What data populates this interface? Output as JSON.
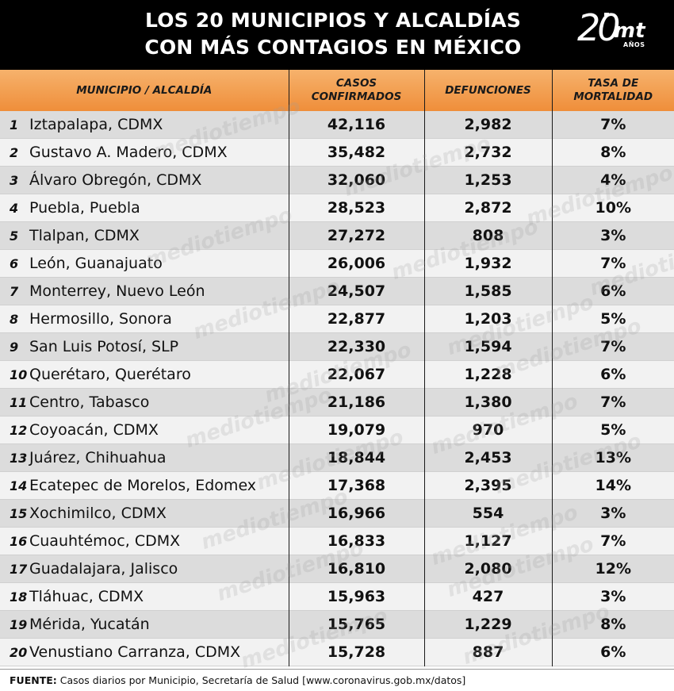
{
  "header": {
    "title_line1": "LOS 20 MUNICIPIOS Y ALCALDÍAS",
    "title_line2": "CON MÁS CONTAGIOS EN MÉXICO",
    "logo_number": "20",
    "logo_mt": "mt",
    "logo_anos": "AÑOS"
  },
  "columns": {
    "municipio": "MUNICIPIO / ALCALDÍA",
    "casos_line1": "CASOS",
    "casos_line2": "CONFIRMADOS",
    "defunciones": "DEFUNCIONES",
    "tasa_line1": "TASA DE",
    "tasa_line2": "MORTALIDAD"
  },
  "rows": [
    {
      "rank": "1",
      "name": "Iztapalapa, CDMX",
      "casos": "42,116",
      "defunciones": "2,982",
      "tasa": "7%"
    },
    {
      "rank": "2",
      "name": "Gustavo A. Madero, CDMX",
      "casos": "35,482",
      "defunciones": "2,732",
      "tasa": "8%"
    },
    {
      "rank": "3",
      "name": "Álvaro Obregón, CDMX",
      "casos": "32,060",
      "defunciones": "1,253",
      "tasa": "4%"
    },
    {
      "rank": "4",
      "name": "Puebla, Puebla",
      "casos": "28,523",
      "defunciones": "2,872",
      "tasa": "10%"
    },
    {
      "rank": "5",
      "name": "Tlalpan, CDMX",
      "casos": "27,272",
      "defunciones": "808",
      "tasa": "3%"
    },
    {
      "rank": "6",
      "name": "León, Guanajuato",
      "casos": "26,006",
      "defunciones": "1,932",
      "tasa": "7%"
    },
    {
      "rank": "7",
      "name": "Monterrey, Nuevo León",
      "casos": "24,507",
      "defunciones": "1,585",
      "tasa": "6%"
    },
    {
      "rank": "8",
      "name": "Hermosillo, Sonora",
      "casos": "22,877",
      "defunciones": "1,203",
      "tasa": "5%"
    },
    {
      "rank": "9",
      "name": "San Luis Potosí, SLP",
      "casos": "22,330",
      "defunciones": "1,594",
      "tasa": "7%"
    },
    {
      "rank": "10",
      "name": "Querétaro, Querétaro",
      "casos": "22,067",
      "defunciones": "1,228",
      "tasa": "6%"
    },
    {
      "rank": "11",
      "name": "Centro, Tabasco",
      "casos": "21,186",
      "defunciones": "1,380",
      "tasa": "7%"
    },
    {
      "rank": "12",
      "name": "Coyoacán, CDMX",
      "casos": "19,079",
      "defunciones": "970",
      "tasa": "5%"
    },
    {
      "rank": "13",
      "name": "Juárez, Chihuahua",
      "casos": "18,844",
      "defunciones": "2,453",
      "tasa": "13%"
    },
    {
      "rank": "14",
      "name": "Ecatepec de Morelos, Edomex",
      "casos": "17,368",
      "defunciones": "2,395",
      "tasa": "14%"
    },
    {
      "rank": "15",
      "name": "Xochimilco, CDMX",
      "casos": "16,966",
      "defunciones": "554",
      "tasa": "3%"
    },
    {
      "rank": "16",
      "name": "Cuauhtémoc, CDMX",
      "casos": "16,833",
      "defunciones": "1,127",
      "tasa": "7%"
    },
    {
      "rank": "17",
      "name": "Guadalajara, Jalisco",
      "casos": "16,810",
      "defunciones": "2,080",
      "tasa": "12%"
    },
    {
      "rank": "18",
      "name": "Tláhuac, CDMX",
      "casos": "15,963",
      "defunciones": "427",
      "tasa": "3%"
    },
    {
      "rank": "19",
      "name": "Mérida, Yucatán",
      "casos": "15,765",
      "defunciones": "1,229",
      "tasa": "8%"
    },
    {
      "rank": "20",
      "name": "Venustiano Carranza, CDMX",
      "casos": "15,728",
      "defunciones": "887",
      "tasa": "6%"
    }
  ],
  "footer": {
    "label": "FUENTE:",
    "text": " Casos diarios por Municipio, Secretaría de Salud [www.coronavirus.gob.mx/datos]"
  },
  "watermark": "mediotiempo",
  "colors": {
    "header_bg": "#000000",
    "column_header": "#f09a47",
    "row_odd": "#dcdcdc",
    "row_even": "#f2f2f2"
  }
}
